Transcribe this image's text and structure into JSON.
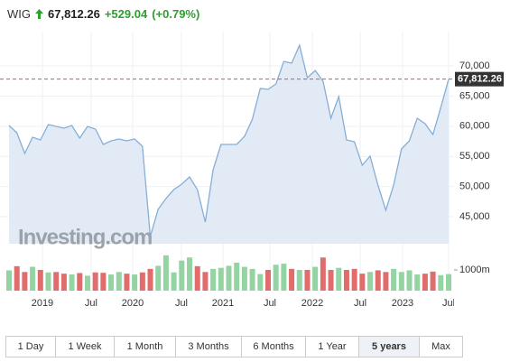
{
  "header": {
    "symbol": "WIG",
    "price": "67,812.26",
    "change": "+529.04",
    "change_pct": "(+0.79%)"
  },
  "chart_data": {
    "type": "area",
    "watermark": "Investing.com",
    "x": [
      0,
      1,
      2,
      3,
      4,
      5,
      6,
      7,
      8,
      9,
      10,
      11,
      12,
      13,
      14,
      15,
      16,
      17,
      18,
      19,
      20,
      21,
      22,
      23,
      24,
      25,
      26,
      27,
      28,
      29,
      30,
      31,
      32,
      33,
      34,
      35,
      36,
      37,
      38,
      39,
      40,
      41,
      42,
      43,
      44,
      45,
      46,
      47,
      48,
      49,
      50,
      51,
      52,
      53,
      54,
      55,
      56
    ],
    "xlim": [
      0,
      56
    ],
    "xticks": [
      {
        "value": 4.25,
        "label": "2019"
      },
      {
        "value": 10.46,
        "label": "Jul"
      },
      {
        "value": 15.75,
        "label": "2020"
      },
      {
        "value": 21.96,
        "label": "Jul"
      },
      {
        "value": 27.25,
        "label": "2021"
      },
      {
        "value": 33.23,
        "label": "Jul"
      },
      {
        "value": 38.64,
        "label": "2022"
      },
      {
        "value": 44.74,
        "label": "Jul"
      },
      {
        "value": 50.13,
        "label": "2023"
      },
      {
        "value": 56,
        "label": "Jul"
      }
    ],
    "series": [
      {
        "name": "WIG",
        "color": "#86aed6",
        "fill": "#e2ebf5",
        "values": [
          60120,
          58920,
          55480,
          58170,
          57730,
          60270,
          59970,
          59670,
          60120,
          58020,
          59970,
          59520,
          56980,
          57580,
          57880,
          57580,
          57880,
          56680,
          41710,
          46200,
          48000,
          49490,
          50390,
          51590,
          49490,
          44100,
          52780,
          56980,
          56980,
          56980,
          58320,
          61170,
          66260,
          66110,
          67010,
          70750,
          70450,
          73440,
          68050,
          69250,
          67460,
          61320,
          64910,
          57730,
          57430,
          53530,
          55030,
          50240,
          46050,
          50240,
          56230,
          57580,
          61320,
          60420,
          58620,
          63110,
          67812.26
        ]
      }
    ],
    "ylim": [
      40500,
      75700
    ],
    "yticks": [
      {
        "value": 45000,
        "label": "45,000"
      },
      {
        "value": 50000,
        "label": "50,000"
      },
      {
        "value": 55000,
        "label": "55,000"
      },
      {
        "value": 60000,
        "label": "60,000"
      },
      {
        "value": 65000,
        "label": "65,000"
      },
      {
        "value": 70000,
        "label": "70,000"
      }
    ],
    "reference_color": "#d9534f",
    "volume": {
      "values": [
        980,
        1180,
        900,
        1150,
        1000,
        880,
        900,
        820,
        780,
        850,
        720,
        880,
        860,
        780,
        900,
        820,
        780,
        880,
        1050,
        1200,
        1700,
        880,
        1450,
        1600,
        1180,
        900,
        1050,
        1100,
        1200,
        1350,
        1150,
        1050,
        800,
        1000,
        1250,
        1300,
        1050,
        1000,
        1000,
        1150,
        1600,
        1000,
        1100,
        1000,
        1050,
        820,
        900,
        980,
        900,
        1050,
        900,
        980,
        780,
        820,
        920,
        750,
        800
      ],
      "up_color": "#94d3a2",
      "down_color": "#e06c6c",
      "ylim": [
        0,
        1800
      ],
      "yticks": [
        {
          "value": 1000,
          "label": "1000m"
        }
      ]
    }
  },
  "ranges": {
    "labels": [
      "1 Day",
      "1 Week",
      "1 Month",
      "3 Months",
      "6 Months",
      "1 Year",
      "5 years",
      "Max"
    ],
    "selected_index": 6
  }
}
